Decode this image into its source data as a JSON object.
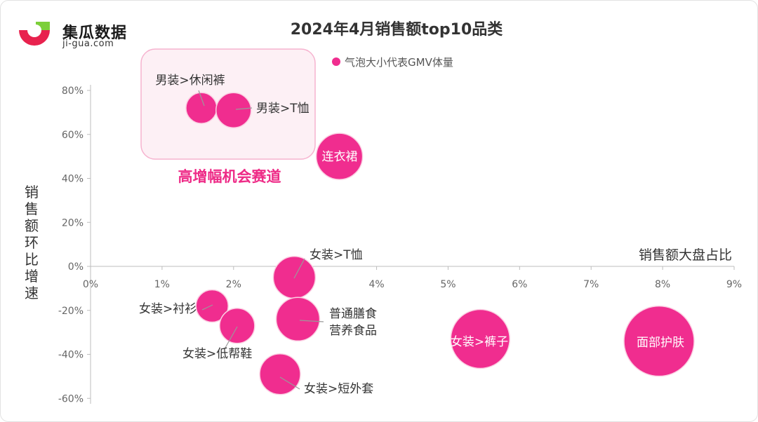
{
  "brand": {
    "name": "集瓜数据",
    "domain": "ji-gua.com",
    "colors": {
      "green": "#7ccf3a",
      "red": "#e8224e",
      "dark": "#1a1a1a"
    }
  },
  "highlight": {
    "label": "高增幅机会赛道",
    "color": "#ee2b87"
  },
  "chart_data": {
    "type": "scatter",
    "bubble": true,
    "title": "2024年4月销售额top10品类",
    "legend": "气泡大小代表GMV体量",
    "legend_position": "top-center",
    "xlabel": "销售额大盘占比",
    "ylabel": "销售额环比增速",
    "xlim": [
      0,
      9
    ],
    "ylim": [
      -60,
      80
    ],
    "x_unit": "%",
    "y_unit": "%",
    "x_ticks": [
      "0%",
      "1%",
      "2%",
      "3%",
      "4%",
      "5%",
      "6%",
      "7%",
      "8%",
      "9%"
    ],
    "y_ticks": [
      "80%",
      "60%",
      "40%",
      "20%",
      "0%",
      "-20%",
      "-40%",
      "-60%"
    ],
    "bubble_color": "#f02d8f",
    "points": [
      {
        "name": "男装>休闲裤",
        "x": 1.55,
        "y": 72,
        "size": 22
      },
      {
        "name": "男装>T恤",
        "x": 2.0,
        "y": 71,
        "size": 25
      },
      {
        "name": "连衣裙",
        "x": 3.48,
        "y": 50,
        "size": 33
      },
      {
        "name": "女装>T恤",
        "x": 2.85,
        "y": -5,
        "size": 30
      },
      {
        "name": "女装>衬衫",
        "x": 1.7,
        "y": -18,
        "size": 23
      },
      {
        "name": "女装>低帮鞋",
        "x": 2.05,
        "y": -27,
        "size": 25
      },
      {
        "name": "普通膳食营养食品",
        "x": 2.9,
        "y": -24,
        "size": 31
      },
      {
        "name": "女装>短外套",
        "x": 2.65,
        "y": -49,
        "size": 29
      },
      {
        "name": "女装>裤子",
        "x": 5.45,
        "y": -33,
        "size": 42
      },
      {
        "name": "面部护肤",
        "x": 7.95,
        "y": -34,
        "size": 50
      }
    ]
  }
}
